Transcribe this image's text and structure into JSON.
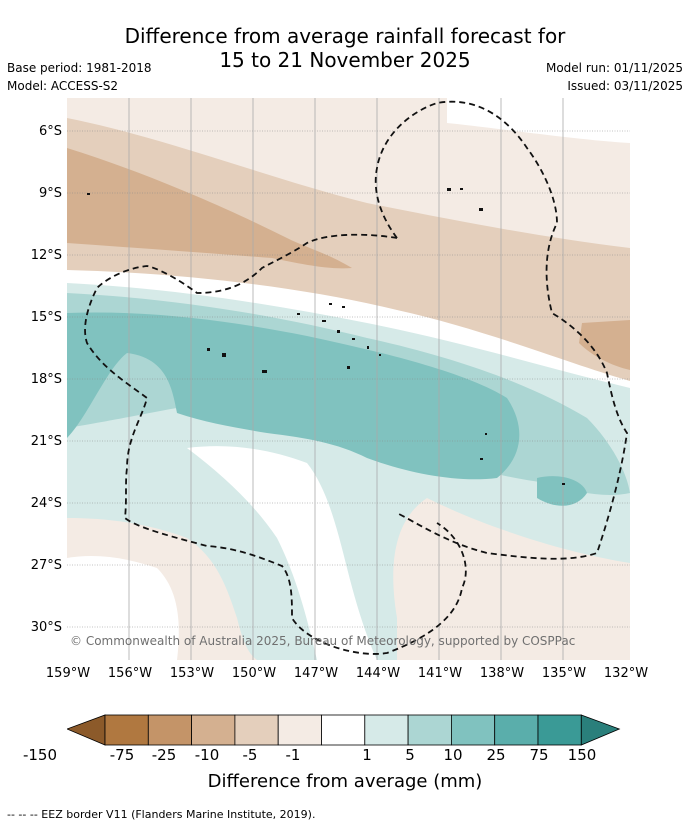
{
  "title_line1": "Difference from average rainfall forecast for",
  "title_line2": "15 to 21 November 2025",
  "base_period": "Base period: 1981-2018",
  "model": "Model: ACCESS-S2",
  "model_run": "Model run: 01/11/2025",
  "issued": "Issued: 03/11/2025",
  "lat_labels": [
    "6°S",
    "9°S",
    "12°S",
    "15°S",
    "18°S",
    "21°S",
    "24°S",
    "27°S",
    "30°S"
  ],
  "lon_labels": [
    "159°W",
    "156°W",
    "153°W",
    "150°W",
    "147°W",
    "144°W",
    "141°W",
    "138°W",
    "135°W",
    "132°W"
  ],
  "copyright": "© Commonwealth of Australia 2025, Bureau of Meteorology, supported by COSPPac",
  "colorbar": {
    "ticks": [
      "-150",
      "-75",
      "-25",
      "-10",
      "-5",
      "-1",
      "1",
      "5",
      "10",
      "25",
      "75",
      "150"
    ],
    "colors": [
      "#8c5a2a",
      "#b07840",
      "#c49468",
      "#d4b090",
      "#e4cfbc",
      "#f4ebe4",
      "#ffffff",
      "#d6eae8",
      "#acd6d3",
      "#80c2bf",
      "#5aaeab",
      "#3a9a96",
      "#2a7f7b"
    ],
    "label": "Difference from average (mm)"
  },
  "footer": "-- -- -- EEZ border V11 (Flanders Marine Institute, 2019)."
}
